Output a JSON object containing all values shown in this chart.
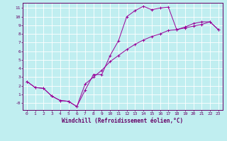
{
  "xlabel": "Windchill (Refroidissement éolien,°C)",
  "background_color": "#c0eef0",
  "line_color": "#990099",
  "xlim": [
    -0.5,
    23.5
  ],
  "ylim": [
    -0.8,
    11.6
  ],
  "xticks": [
    0,
    1,
    2,
    3,
    4,
    5,
    6,
    7,
    8,
    9,
    10,
    11,
    12,
    13,
    14,
    15,
    16,
    17,
    18,
    19,
    20,
    21,
    22,
    23
  ],
  "yticks": [
    0,
    1,
    2,
    3,
    4,
    5,
    6,
    7,
    8,
    9,
    10,
    11
  ],
  "ytick_labels": [
    "-0",
    "1",
    "2",
    "3",
    "4",
    "5",
    "6",
    "7",
    "8",
    "9",
    "10",
    "11"
  ],
  "line1_x": [
    0,
    1,
    2,
    3,
    4,
    5,
    6,
    7,
    8,
    9,
    10,
    11,
    12,
    13,
    14,
    15,
    16,
    17,
    18,
    19,
    20,
    21,
    22,
    23
  ],
  "line1_y": [
    2.5,
    1.8,
    1.7,
    0.8,
    0.3,
    0.2,
    -0.4,
    1.5,
    3.3,
    3.3,
    5.5,
    7.2,
    10.0,
    10.7,
    11.2,
    10.8,
    11.0,
    11.1,
    8.5,
    8.8,
    9.2,
    9.4,
    9.4,
    8.5
  ],
  "line2_x": [
    0,
    1,
    2,
    3,
    4,
    5,
    6,
    7,
    8,
    9,
    10,
    11,
    12,
    13,
    14,
    15,
    16,
    17,
    18,
    19,
    20,
    21,
    22,
    23
  ],
  "line2_y": [
    2.5,
    1.8,
    1.7,
    0.8,
    0.3,
    0.2,
    -0.4,
    2.2,
    3.0,
    3.8,
    4.8,
    5.5,
    6.2,
    6.8,
    7.3,
    7.7,
    8.0,
    8.4,
    8.5,
    8.7,
    8.9,
    9.1,
    9.4,
    8.5
  ],
  "xlabel_fontsize": 5.5,
  "tick_fontsize": 4.5
}
